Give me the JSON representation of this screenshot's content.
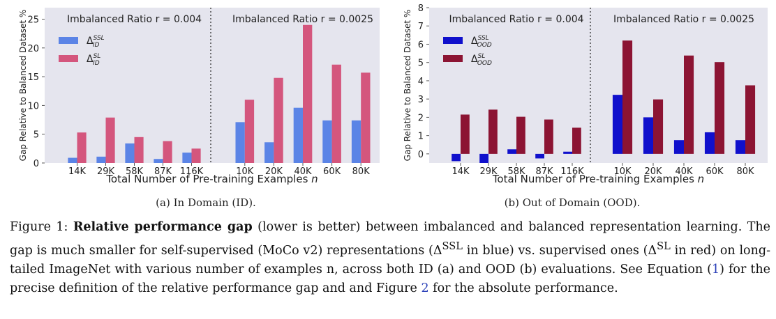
{
  "chart_data": [
    {
      "type": "bar",
      "id": "chart-a",
      "ylabel": "Gap Relative to Balanced Dataset %",
      "xlabel": "Total Number of Pre-training Examples n",
      "ylim": [
        0,
        27
      ],
      "yticks": [
        0,
        5,
        10,
        15,
        20,
        25
      ],
      "grid": false,
      "legend_position": "top-left",
      "panels": [
        {
          "title": "Imbalanced Ratio r = 0.004",
          "categories": [
            "14K",
            "29K",
            "58K",
            "87K",
            "116K"
          ],
          "series": [
            {
              "name": "Δ_ID^SSL",
              "color": "#5b84e6",
              "values": [
                0.9,
                1.1,
                3.4,
                0.7,
                1.8
              ]
            },
            {
              "name": "Δ_ID^SL",
              "color": "#d4567d",
              "values": [
                5.3,
                7.9,
                4.5,
                3.8,
                2.5
              ]
            }
          ]
        },
        {
          "title": "Imbalanced Ratio r = 0.0025",
          "categories": [
            "10K",
            "20K",
            "40K",
            "60K",
            "80K"
          ],
          "series": [
            {
              "name": "Δ_ID^SSL",
              "color": "#5b84e6",
              "values": [
                7.1,
                3.6,
                9.6,
                7.4,
                7.4
              ]
            },
            {
              "name": "Δ_ID^SL",
              "color": "#d4567d",
              "values": [
                11.0,
                14.8,
                24.0,
                17.1,
                15.7
              ]
            }
          ]
        }
      ],
      "legend": [
        {
          "base": "Δ",
          "sup": "SSL",
          "sub": "ID",
          "color": "#5b84e6"
        },
        {
          "base": "Δ",
          "sup": "SL",
          "sub": "ID",
          "color": "#d4567d"
        }
      ]
    },
    {
      "type": "bar",
      "id": "chart-b",
      "ylabel": "Gap Relative to Balanced Dataset %",
      "xlabel": "Total Number of Pre-training Examples n",
      "ylim": [
        -0.5,
        8
      ],
      "yticks": [
        0,
        1,
        2,
        3,
        4,
        5,
        6,
        7,
        8
      ],
      "grid": false,
      "legend_position": "top-left",
      "panels": [
        {
          "title": "Imbalanced Ratio r = 0.004",
          "categories": [
            "14K",
            "29K",
            "58K",
            "87K",
            "116K"
          ],
          "series": [
            {
              "name": "Δ_OOD^SSL",
              "color": "#1010cc",
              "values": [
                -0.4,
                -0.5,
                0.25,
                -0.25,
                0.12
              ]
            },
            {
              "name": "Δ_OOD^SL",
              "color": "#8c1433",
              "values": [
                2.15,
                2.42,
                2.03,
                1.88,
                1.43
              ]
            }
          ]
        },
        {
          "title": "Imbalanced Ratio r = 0.0025",
          "categories": [
            "10K",
            "20K",
            "40K",
            "60K",
            "80K"
          ],
          "series": [
            {
              "name": "Δ_OOD^SSL",
              "color": "#1010cc",
              "values": [
                3.23,
                2.0,
                0.75,
                1.18,
                0.75
              ]
            },
            {
              "name": "Δ_OOD^SL",
              "color": "#8c1433",
              "values": [
                6.2,
                2.98,
                5.38,
                5.02,
                3.75
              ]
            }
          ]
        }
      ],
      "legend": [
        {
          "base": "Δ",
          "sup": "SSL",
          "sub": "OOD",
          "color": "#1010cc"
        },
        {
          "base": "Δ",
          "sup": "SL",
          "sub": "OOD",
          "color": "#8c1433"
        }
      ]
    }
  ],
  "captions": {
    "a": "(a) In Domain (ID).",
    "b": "(b) Out of Domain (OOD)."
  },
  "figure_caption": {
    "label": "Figure 1: ",
    "bold": "Relative performance gap",
    "text1": " (lower is better) between imbalanced and balanced representation learning. The gap is much smaller for self-supervised (MoCo v2) representations (Δ",
    "sup1": "SSL",
    "text2": " in blue) vs. supervised ones (Δ",
    "sup2": "SL",
    "text3": " in red) on long-tailed ImageNet with various number of examples n, across both ID (a) and OOD (b) evaluations. See Equation (",
    "ref1": "1",
    "text4": ") for the precise definition of the relative performance gap and and Figure ",
    "ref2": "2",
    "text5": " for the absolute performance."
  }
}
